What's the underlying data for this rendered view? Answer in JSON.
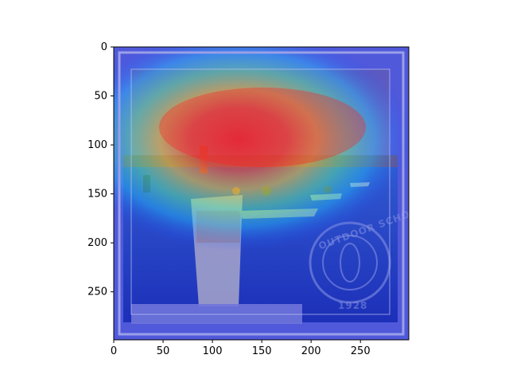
{
  "chart_data": {
    "type": "heatmap",
    "description_kind": "image with attention heatmap overlay",
    "xlim": [
      0,
      299
    ],
    "ylim": [
      299,
      0
    ],
    "x_ticks": [
      0,
      50,
      100,
      150,
      200,
      250
    ],
    "y_ticks": [
      0,
      50,
      100,
      150,
      200,
      250
    ],
    "x_tick_labels": [
      "0",
      "50",
      "100",
      "150",
      "200",
      "250"
    ],
    "y_tick_labels": [
      "0",
      "50",
      "100",
      "150",
      "200",
      "250"
    ],
    "grid": false,
    "colormap": "jet",
    "hotspot": {
      "center_x": 150,
      "center_y": 80,
      "peak": 1.0
    },
    "colors": {
      "low": "#1a1aa8",
      "mid": "#00c0ff",
      "high": "#ff2020",
      "water": "#1a3fae",
      "kayak": "#e8e0b0"
    }
  },
  "scene": {
    "watermark_text": "OUTDOOR SCHOOL",
    "watermark_bottom": "1928"
  }
}
